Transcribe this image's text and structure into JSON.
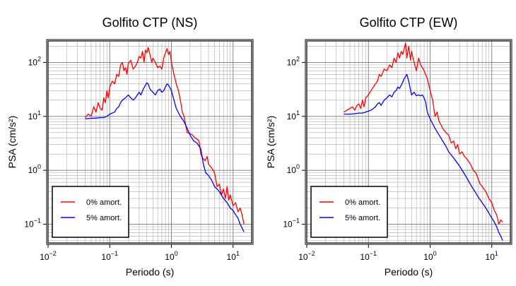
{
  "chart_data": [
    {
      "type": "line",
      "title": "Golfito CTP (NS)",
      "xlabel": "Periodo (s)",
      "ylabel": "PSA (cm/s²)",
      "x_scale": "log",
      "y_scale": "log",
      "xlim": [
        0.01,
        20
      ],
      "ylim": [
        0.045,
        250
      ],
      "x_ticks": [
        0.01,
        0.1,
        1,
        10
      ],
      "x_tick_labels": [
        {
          "base": "10",
          "exp": "−2"
        },
        {
          "base": "10",
          "exp": "−1"
        },
        {
          "base": "10",
          "exp": "0"
        },
        {
          "base": "10",
          "exp": "1"
        }
      ],
      "y_ticks": [
        0.1,
        1,
        10,
        100
      ],
      "y_tick_labels": [
        {
          "base": "10",
          "exp": "−1"
        },
        {
          "base": "10",
          "exp": "0"
        },
        {
          "base": "10",
          "exp": "1"
        },
        {
          "base": "10",
          "exp": "2"
        }
      ],
      "grid": true,
      "legend_position": "bottom-left",
      "series": [
        {
          "name": "0% amort.",
          "color": "#ff0000",
          "x": [
            0.04,
            0.045,
            0.05,
            0.055,
            0.06,
            0.065,
            0.07,
            0.075,
            0.08,
            0.085,
            0.09,
            0.095,
            0.1,
            0.11,
            0.12,
            0.13,
            0.14,
            0.15,
            0.16,
            0.17,
            0.18,
            0.19,
            0.2,
            0.22,
            0.24,
            0.26,
            0.28,
            0.3,
            0.32,
            0.34,
            0.36,
            0.38,
            0.4,
            0.42,
            0.45,
            0.48,
            0.5,
            0.55,
            0.6,
            0.65,
            0.7,
            0.75,
            0.8,
            0.85,
            0.9,
            0.95,
            1.0,
            1.1,
            1.2,
            1.3,
            1.4,
            1.5,
            1.6,
            1.8,
            2.0,
            2.2,
            2.4,
            2.6,
            2.8,
            3.0,
            3.2,
            3.5,
            3.8,
            4.0,
            4.5,
            5.0,
            5.5,
            6.0,
            6.5,
            7.0,
            7.5,
            8.0,
            8.5,
            9.0,
            10.0,
            11.0,
            12.0,
            13.0,
            14.0,
            15.0
          ],
          "y": [
            9.5,
            11,
            10,
            15,
            12,
            18,
            14,
            13,
            22,
            18,
            30,
            22,
            35,
            45,
            40,
            60,
            55,
            90,
            100,
            70,
            80,
            60,
            95,
            110,
            75,
            85,
            100,
            130,
            120,
            160,
            100,
            170,
            150,
            190,
            140,
            100,
            120,
            100,
            80,
            85,
            75,
            120,
            150,
            180,
            140,
            160,
            100,
            60,
            40,
            30,
            20,
            12,
            10,
            5.0,
            4.8,
            4.5,
            4.0,
            3.8,
            3.5,
            2.0,
            1.7,
            1.5,
            1.8,
            1.3,
            1.1,
            0.9,
            0.5,
            0.55,
            0.35,
            0.45,
            0.3,
            0.5,
            0.28,
            0.35,
            0.22,
            0.25,
            0.17,
            0.2,
            0.15,
            0.1
          ]
        },
        {
          "name": "5% amort.",
          "color": "#0000ff",
          "x": [
            0.04,
            0.05,
            0.06,
            0.07,
            0.08,
            0.09,
            0.1,
            0.11,
            0.12,
            0.13,
            0.14,
            0.15,
            0.16,
            0.18,
            0.2,
            0.22,
            0.24,
            0.26,
            0.28,
            0.3,
            0.32,
            0.35,
            0.38,
            0.4,
            0.42,
            0.45,
            0.5,
            0.55,
            0.6,
            0.65,
            0.7,
            0.75,
            0.8,
            0.85,
            0.9,
            1.0,
            1.1,
            1.2,
            1.4,
            1.6,
            1.8,
            2.0,
            2.3,
            2.6,
            3.0,
            3.3,
            3.6,
            4.0,
            4.5,
            5.0,
            5.5,
            6.0,
            7.0,
            8.0,
            9.0,
            10.0,
            11.0,
            12.0,
            13.0,
            14.0,
            15.0
          ],
          "y": [
            9,
            9.2,
            9.3,
            9.5,
            9.5,
            10,
            11,
            11.5,
            12,
            14,
            15,
            18,
            20,
            22,
            25,
            22,
            20,
            22,
            25,
            28,
            25,
            32,
            38,
            42,
            40,
            32,
            28,
            25,
            30,
            32,
            28,
            30,
            35,
            40,
            38,
            30,
            20,
            14,
            10,
            8,
            6,
            4.5,
            3.5,
            3.2,
            2.5,
            1.3,
            0.9,
            0.8,
            0.65,
            0.5,
            0.45,
            0.4,
            0.3,
            0.25,
            0.2,
            0.18,
            0.15,
            0.13,
            0.1,
            0.085,
            0.072
          ]
        }
      ]
    },
    {
      "type": "line",
      "title": "Golfito CTP (EW)",
      "xlabel": "Periodo (s)",
      "ylabel": "PSA (cm/s²)",
      "x_scale": "log",
      "y_scale": "log",
      "xlim": [
        0.01,
        20
      ],
      "ylim": [
        0.045,
        250
      ],
      "x_ticks": [
        0.01,
        0.1,
        1,
        10
      ],
      "x_tick_labels": [
        {
          "base": "10",
          "exp": "−2"
        },
        {
          "base": "10",
          "exp": "−1"
        },
        {
          "base": "10",
          "exp": "0"
        },
        {
          "base": "10",
          "exp": "1"
        }
      ],
      "y_ticks": [
        0.1,
        1,
        10,
        100
      ],
      "y_tick_labels": [
        {
          "base": "10",
          "exp": "−1"
        },
        {
          "base": "10",
          "exp": "0"
        },
        {
          "base": "10",
          "exp": "1"
        },
        {
          "base": "10",
          "exp": "2"
        }
      ],
      "grid": true,
      "legend_position": "bottom-left",
      "series": [
        {
          "name": "0% amort.",
          "color": "#ff0000",
          "x": [
            0.04,
            0.045,
            0.05,
            0.055,
            0.06,
            0.065,
            0.07,
            0.075,
            0.08,
            0.085,
            0.09,
            0.1,
            0.11,
            0.12,
            0.13,
            0.14,
            0.15,
            0.16,
            0.18,
            0.2,
            0.22,
            0.24,
            0.26,
            0.28,
            0.3,
            0.32,
            0.34,
            0.36,
            0.38,
            0.4,
            0.42,
            0.45,
            0.48,
            0.5,
            0.55,
            0.6,
            0.65,
            0.7,
            0.75,
            0.8,
            0.9,
            1.0,
            1.1,
            1.2,
            1.3,
            1.4,
            1.5,
            1.6,
            1.8,
            2.0,
            2.2,
            2.4,
            2.6,
            2.8,
            3.0,
            3.3,
            3.6,
            4.0,
            4.5,
            5.0,
            5.5,
            6.0,
            6.5,
            7.0,
            8.0,
            9.0,
            10.0,
            11.0,
            12.0,
            13.0,
            14.0,
            15.0
          ],
          "y": [
            12,
            13,
            14,
            15,
            13,
            16,
            17,
            14,
            20,
            15,
            22,
            25,
            30,
            35,
            40,
            45,
            60,
            55,
            75,
            70,
            90,
            80,
            120,
            100,
            150,
            120,
            160,
            140,
            180,
            230,
            120,
            200,
            110,
            160,
            100,
            70,
            120,
            90,
            80,
            70,
            50,
            30,
            20,
            10,
            12,
            8,
            7,
            6,
            5,
            4.5,
            3.2,
            3.5,
            2.5,
            3.0,
            2.0,
            2.2,
            1.8,
            1.6,
            1.3,
            1.0,
            0.9,
            0.7,
            0.55,
            0.5,
            0.4,
            0.3,
            0.25,
            0.18,
            0.15,
            0.1,
            0.12,
            0.11
          ]
        },
        {
          "name": "5% amort.",
          "color": "#0000ff",
          "x": [
            0.04,
            0.05,
            0.06,
            0.07,
            0.08,
            0.09,
            0.1,
            0.11,
            0.12,
            0.13,
            0.14,
            0.15,
            0.16,
            0.18,
            0.2,
            0.22,
            0.24,
            0.26,
            0.28,
            0.3,
            0.32,
            0.35,
            0.38,
            0.4,
            0.42,
            0.45,
            0.5,
            0.55,
            0.6,
            0.65,
            0.7,
            0.75,
            0.8,
            0.85,
            0.9,
            1.0,
            1.2,
            1.4,
            1.6,
            1.8,
            2.0,
            2.3,
            2.6,
            3.0,
            3.5,
            4.0,
            4.5,
            5.0,
            5.5,
            6.0,
            7.0,
            8.0,
            9.0,
            10.0,
            11.0,
            12.0,
            13.0,
            14.0,
            15.0
          ],
          "y": [
            11,
            11,
            11.2,
            11.5,
            11.5,
            12,
            12.5,
            13,
            14,
            15,
            17,
            18,
            16,
            20,
            22,
            25,
            23,
            28,
            30,
            35,
            33,
            40,
            50,
            55,
            60,
            45,
            25,
            28,
            24,
            25,
            24,
            25,
            22,
            18,
            12,
            9,
            6,
            4.5,
            3.5,
            2.8,
            2.2,
            1.8,
            1.5,
            1.2,
            0.9,
            0.7,
            0.55,
            0.45,
            0.38,
            0.32,
            0.25,
            0.2,
            0.16,
            0.13,
            0.11,
            0.09,
            0.07,
            0.06,
            0.05
          ]
        }
      ]
    }
  ]
}
